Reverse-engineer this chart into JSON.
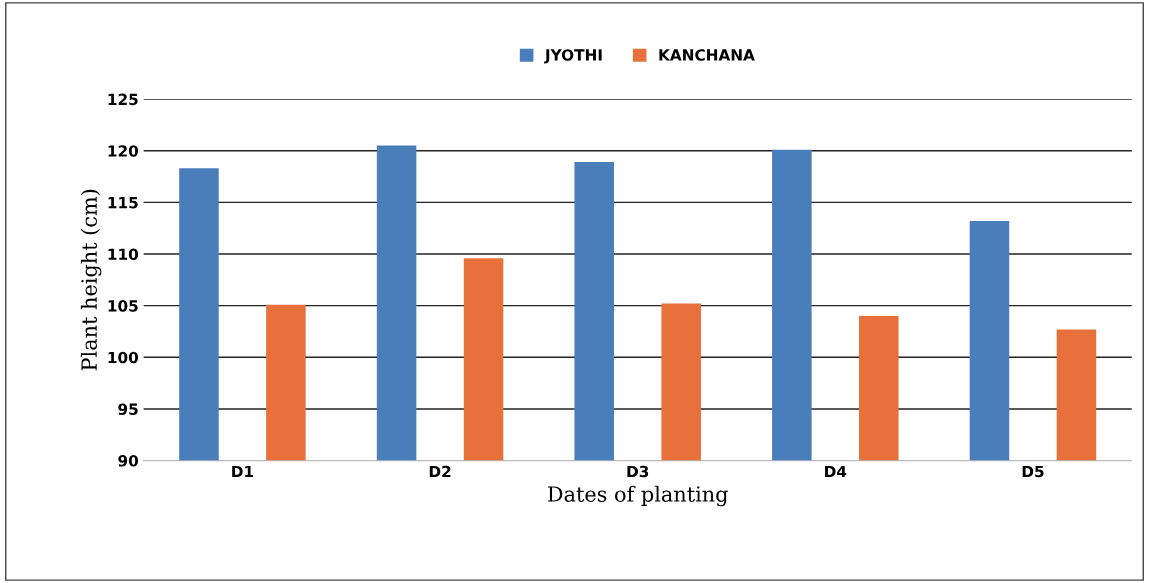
{
  "chart_data": {
    "type": "bar",
    "xlabel": "Dates of planting",
    "ylabel": "Plant height (cm)",
    "categories": [
      "D1",
      "D2",
      "D3",
      "D4",
      "D5"
    ],
    "series": [
      {
        "name": "JYOTHI",
        "color": "#4a7ebb",
        "values": [
          118.3,
          120.5,
          118.9,
          120.1,
          113.2
        ]
      },
      {
        "name": "KANCHANA",
        "color": "#e8703a",
        "values": [
          105.1,
          109.6,
          105.2,
          104.0,
          102.7
        ]
      }
    ],
    "ylim": [
      90,
      125
    ],
    "yticks": [
      90,
      95,
      100,
      105,
      110,
      115,
      120,
      125
    ],
    "grid": "y",
    "legend": "top"
  }
}
